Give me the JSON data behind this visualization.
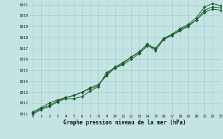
{
  "title": "Graphe pression niveau de la mer (hPa)",
  "background_color": "#c4e4e4",
  "grid_color": "#a8cece",
  "line_color": "#1a5c2a",
  "xlim": [
    -0.5,
    23
  ],
  "ylim": [
    1011,
    1021.3
  ],
  "xticks": [
    0,
    1,
    2,
    3,
    4,
    5,
    6,
    7,
    8,
    9,
    10,
    11,
    12,
    13,
    14,
    15,
    16,
    17,
    18,
    19,
    20,
    21,
    22,
    23
  ],
  "yticks": [
    1011,
    1012,
    1013,
    1014,
    1015,
    1016,
    1017,
    1018,
    1019,
    1020,
    1021
  ],
  "series1": [
    1011.1,
    1011.5,
    1011.8,
    1012.2,
    1012.5,
    1012.7,
    1013.0,
    1013.4,
    1013.7,
    1014.5,
    1015.2,
    1015.5,
    1016.0,
    1016.5,
    1017.3,
    1016.8,
    1017.8,
    1018.2,
    1018.6,
    1019.0,
    1019.6,
    1020.5,
    1020.8,
    1020.7
  ],
  "series2": [
    1011.2,
    1011.6,
    1012.0,
    1012.3,
    1012.5,
    1012.7,
    1013.0,
    1013.3,
    1013.6,
    1014.6,
    1015.3,
    1015.7,
    1016.2,
    1016.7,
    1017.4,
    1017.0,
    1017.9,
    1018.3,
    1018.8,
    1019.2,
    1019.8,
    1020.8,
    1021.1,
    1020.9
  ],
  "series3": [
    1011.0,
    1011.4,
    1011.7,
    1012.1,
    1012.4,
    1012.4,
    1012.6,
    1013.1,
    1013.5,
    1014.8,
    1015.2,
    1015.6,
    1016.2,
    1016.6,
    1017.2,
    1017.0,
    1017.9,
    1018.2,
    1018.7,
    1019.1,
    1019.6,
    1020.3,
    1020.6,
    1020.5
  ]
}
